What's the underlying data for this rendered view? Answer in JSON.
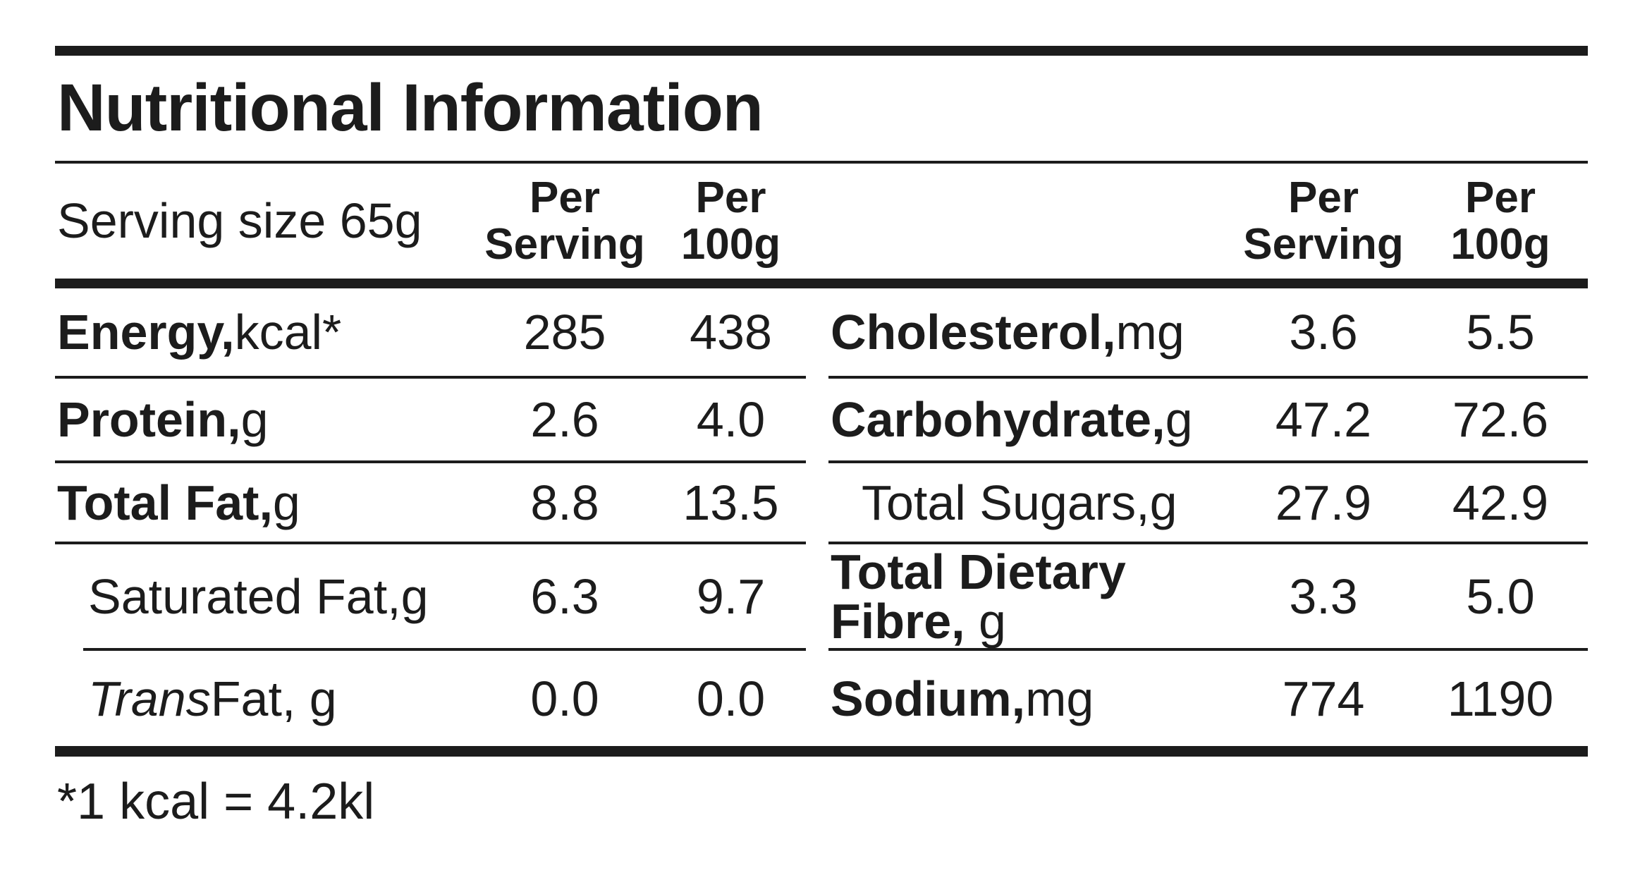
{
  "title": "Nutritional Information",
  "header": {
    "serving_size": "Serving size 65g",
    "per_serving": "Per\nServing",
    "per_100g": "Per\n100g"
  },
  "left": {
    "rows": [
      {
        "name": "Energy,",
        "unit": " kcal*",
        "per_serving": "285",
        "per_100g": "438"
      },
      {
        "name": "Protein,",
        "unit": " g",
        "per_serving": "2.6",
        "per_100g": "4.0"
      },
      {
        "name": "Total Fat,",
        "unit": " g",
        "per_serving": "8.8",
        "per_100g": "13.5"
      },
      {
        "name": "Saturated Fat,",
        "unit": " g",
        "per_serving": "6.3",
        "per_100g": "9.7"
      },
      {
        "name": "Trans",
        "unit": " Fat, g",
        "per_serving": "0.0",
        "per_100g": "0.0"
      }
    ]
  },
  "right": {
    "rows": [
      {
        "name": "Cholesterol,",
        "unit": " mg",
        "per_serving": "3.6",
        "per_100g": "5.5"
      },
      {
        "name": "Carbohydrate,",
        "unit": " g",
        "per_serving": "47.2",
        "per_100g": "72.6"
      },
      {
        "name": "Total Sugars,",
        "unit": " g",
        "per_serving": "27.9",
        "per_100g": "42.9"
      },
      {
        "name": "Total Dietary Fibre,",
        "unit": " g",
        "per_serving": "3.3",
        "per_100g": "5.0"
      },
      {
        "name": "Sodium,",
        "unit": " mg",
        "per_serving": "774",
        "per_100g": "1190"
      }
    ]
  },
  "footnote": "*1 kcal = 4.2kl",
  "colors": {
    "ink": "#1c1c1c",
    "paper": "#ffffff"
  }
}
